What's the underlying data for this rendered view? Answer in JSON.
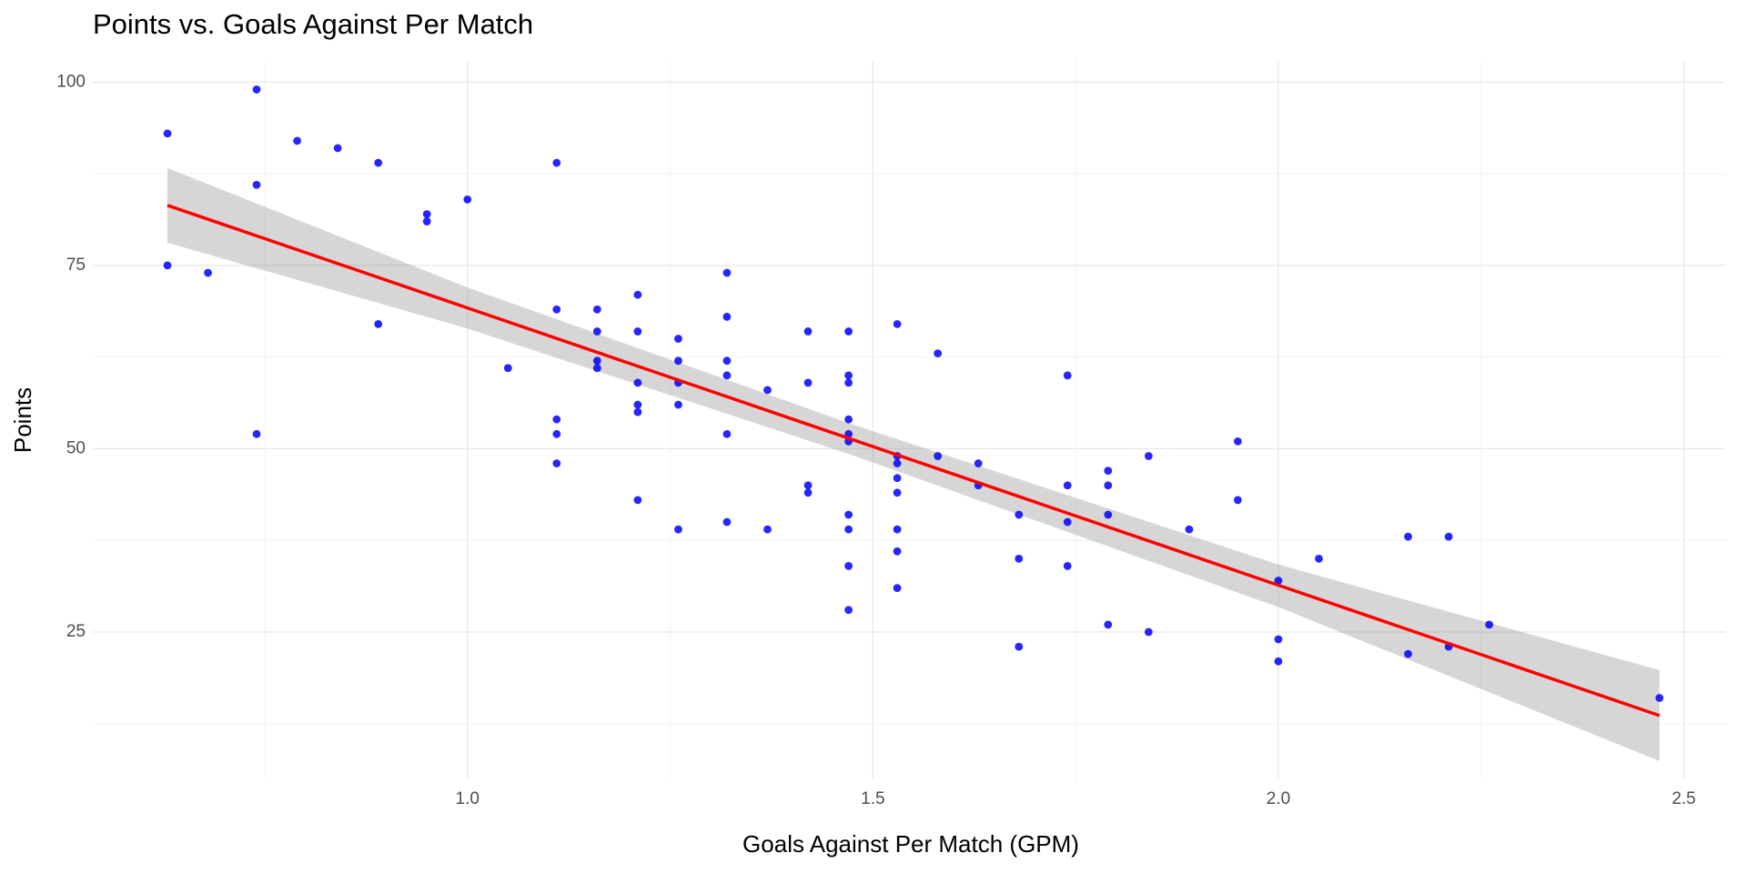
{
  "chart_data": {
    "type": "scatter",
    "title": "Points vs. Goals Against Per Match",
    "x_label": "Goals Against Per Match (GPM)",
    "y_label": "Points",
    "series": [
      {
        "color": "#0000ff",
        "x": [
          0.63,
          0.63,
          0.68,
          0.74,
          0.74,
          0.74,
          0.79,
          0.84,
          0.89,
          0.89,
          0.95,
          0.95,
          1.0,
          1.05,
          1.11,
          1.11,
          1.11,
          1.11,
          1.11,
          1.16,
          1.16,
          1.16,
          1.16,
          1.21,
          1.21,
          1.21,
          1.21,
          1.21,
          1.21,
          1.26,
          1.26,
          1.26,
          1.26,
          1.26,
          1.32,
          1.32,
          1.32,
          1.32,
          1.32,
          1.32,
          1.37,
          1.37,
          1.42,
          1.42,
          1.42,
          1.42,
          1.47,
          1.47,
          1.47,
          1.47,
          1.47,
          1.47,
          1.47,
          1.47,
          1.47,
          1.47,
          1.53,
          1.53,
          1.53,
          1.53,
          1.53,
          1.53,
          1.53,
          1.53,
          1.58,
          1.58,
          1.63,
          1.63,
          1.68,
          1.68,
          1.68,
          1.74,
          1.74,
          1.74,
          1.74,
          1.79,
          1.79,
          1.79,
          1.79,
          1.84,
          1.84,
          1.89,
          1.95,
          1.95,
          2.0,
          2.0,
          2.0,
          2.05,
          2.16,
          2.16,
          2.21,
          2.21,
          2.26,
          2.47
        ],
        "values": [
          93,
          75,
          74,
          99,
          86,
          52,
          92,
          91,
          89,
          67,
          82,
          81,
          84,
          61,
          89,
          69,
          54,
          52,
          48,
          69,
          66,
          62,
          61,
          71,
          66,
          59,
          56,
          55,
          43,
          65,
          62,
          59,
          56,
          39,
          74,
          68,
          62,
          60,
          52,
          40,
          58,
          39,
          66,
          59,
          45,
          44,
          66,
          60,
          59,
          54,
          52,
          51,
          41,
          39,
          34,
          28,
          67,
          49,
          48,
          46,
          44,
          39,
          36,
          31,
          63,
          49,
          48,
          45,
          41,
          35,
          23,
          60,
          45,
          40,
          34,
          47,
          45,
          41,
          26,
          49,
          25,
          39,
          51,
          43,
          32,
          24,
          21,
          35,
          38,
          22,
          38,
          23,
          26,
          16
        ]
      }
    ],
    "fit": {
      "color": "#ff0000",
      "x": [
        0.63,
        2.47
      ],
      "values": [
        83.2,
        13.6
      ]
    },
    "band": {
      "color": "#999999",
      "x": [
        0.63,
        1.0,
        1.47,
        2.0,
        2.47
      ],
      "lower": [
        78.1,
        66.4,
        49.3,
        28.4,
        7.4
      ],
      "upper": [
        88.3,
        72.0,
        53.5,
        34.2,
        19.8
      ]
    },
    "xlim": [
      0.538,
      2.551
    ],
    "ylim": [
      4.9,
      102.9
    ],
    "xticks": [
      {
        "value": 1.0,
        "label": "1.0"
      },
      1.5,
      {
        "value": 2.0,
        "label": "2.0"
      },
      2.5
    ],
    "yticks": [
      25,
      50,
      75,
      100
    ],
    "x_minor_grid": [
      0.75,
      1.25,
      1.75,
      2.25
    ],
    "y_minor_grid": [
      12.5,
      37.5,
      62.5,
      87.5
    ],
    "grid": true
  }
}
